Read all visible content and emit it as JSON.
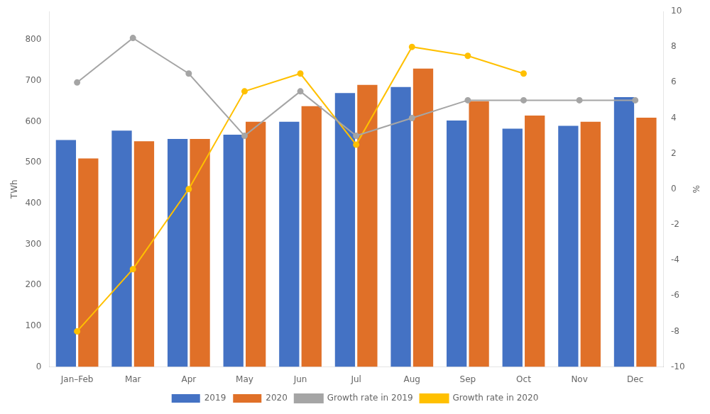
{
  "chart_data": {
    "type": "bar",
    "categories": [
      "Jan–Feb",
      "Mar",
      "Apr",
      "May",
      "Jun",
      "Jul",
      "Aug",
      "Sep",
      "Oct",
      "Nov",
      "Dec"
    ],
    "series": [
      {
        "name": "2019",
        "type": "bar",
        "color": "#4472C4",
        "values": [
          555,
          578,
          558,
          568,
          600,
          670,
          685,
          603,
          583,
          590,
          660
        ]
      },
      {
        "name": "2020",
        "type": "bar",
        "color": "#E07028",
        "values": [
          510,
          552,
          558,
          600,
          638,
          690,
          730,
          650,
          615,
          600,
          610
        ]
      },
      {
        "name": "Growth rate in 2019",
        "type": "line",
        "axis": "y2",
        "color": "#A5A5A5",
        "marker": "circle",
        "values": [
          6.0,
          8.5,
          6.5,
          3.0,
          5.5,
          3.0,
          4.0,
          5.0,
          5.0,
          5.0,
          5.0
        ]
      },
      {
        "name": "Growth rate in 2020",
        "type": "line",
        "axis": "y2",
        "color": "#FFC000",
        "marker": "circle",
        "values": [
          -8.0,
          -4.5,
          0.0,
          5.5,
          6.5,
          2.5,
          8.0,
          7.5,
          6.5,
          null,
          null
        ]
      }
    ],
    "ylabel": "TWh",
    "y2label": "%",
    "ylim": [
      0,
      870
    ],
    "yticks": [
      0,
      100,
      200,
      300,
      400,
      500,
      600,
      700,
      800
    ],
    "y2lim": [
      -10,
      10
    ],
    "y2ticks": [
      -10,
      -8,
      -6,
      -4,
      -2,
      0,
      2,
      4,
      6,
      8,
      10
    ],
    "grid": false,
    "legend": "bottom"
  }
}
